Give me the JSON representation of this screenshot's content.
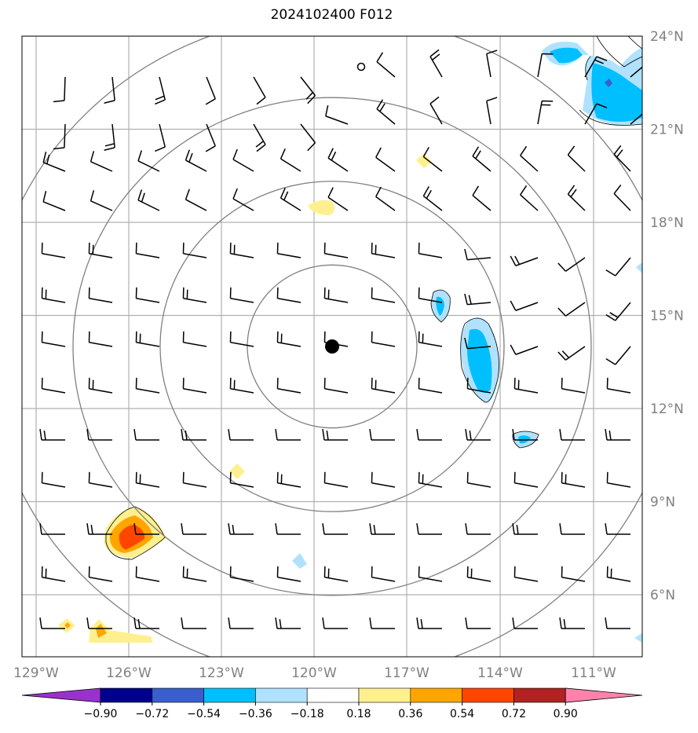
{
  "title": "2024102400 F012",
  "lat_labels": [
    "24°N",
    "21°N",
    "18°N",
    "15°N",
    "12°N",
    "9°N",
    "6°N"
  ],
  "lon_labels": [
    "129°W",
    "126°W",
    "123°W",
    "120°W",
    "117°W",
    "114°W",
    "111°W"
  ],
  "colorbar": {
    "ticks": [
      "−0.90",
      "−0.72",
      "−0.54",
      "−0.36",
      "−0.18",
      "0.18",
      "0.36",
      "0.54",
      "0.72",
      "0.90"
    ],
    "colors": [
      "#9932cc",
      "#00008b",
      "#3a5fcd",
      "#00bfff",
      "#b0e2ff",
      "#ffffff",
      "#fff08f",
      "#ffa500",
      "#ff4500",
      "#b22222",
      "#ff82ab"
    ]
  },
  "map": {
    "center_marker": "storm-center",
    "range_rings": 4,
    "extent": {
      "lon": [
        -129.5,
        -109.4
      ],
      "lat": [
        4,
        24
      ]
    },
    "center": {
      "lon": -119.8,
      "lat": 14.0
    }
  },
  "chart_data": {
    "type": "map",
    "title": "2024102400 F012",
    "field_ranges": [
      -0.9,
      -0.72,
      -0.54,
      -0.36,
      -0.18,
      0.18,
      0.36,
      0.54,
      0.72,
      0.9
    ],
    "features": [
      {
        "name": "positive-blob",
        "lon": -126.1,
        "lat": 8.0,
        "level": 0.72
      },
      {
        "name": "negative-blob",
        "lon": -114.5,
        "lat": 13.5,
        "level": -0.54
      },
      {
        "name": "negative-blob",
        "lon": -115.9,
        "lat": 15.3,
        "level": -0.54
      },
      {
        "name": "negative-blob",
        "lon": -110.5,
        "lat": 22.5,
        "level": -0.72
      },
      {
        "name": "positive-blob",
        "lon": -127.2,
        "lat": 4.8,
        "level": 0.54
      },
      {
        "name": "positive-blob",
        "lon": -119.9,
        "lat": 18.5,
        "level": 0.36
      },
      {
        "name": "negative-blob",
        "lon": -120.6,
        "lat": 7.1,
        "level": -0.36
      },
      {
        "name": "negative-blob",
        "lon": -113.4,
        "lat": 10.9,
        "level": -0.36
      }
    ]
  }
}
